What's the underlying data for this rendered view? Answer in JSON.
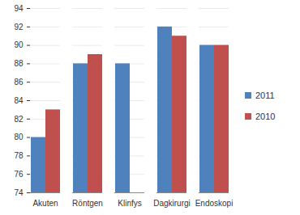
{
  "chart_data": {
    "type": "bar",
    "categories": [
      "Akuten",
      "Röntgen",
      "Klinfys",
      "Dagkirurgi",
      "Endoskopi"
    ],
    "series": [
      {
        "name": "2011",
        "color": "#4f81bd",
        "values": [
          80,
          88,
          88,
          92,
          90
        ]
      },
      {
        "name": "2010",
        "color": "#c0504d",
        "values": [
          83,
          89,
          null,
          91,
          90
        ]
      }
    ],
    "ylim": [
      74,
      94
    ],
    "yticks": [
      74,
      76,
      78,
      80,
      82,
      84,
      86,
      88,
      90,
      92,
      94
    ],
    "grid": true,
    "legend": "right"
  }
}
